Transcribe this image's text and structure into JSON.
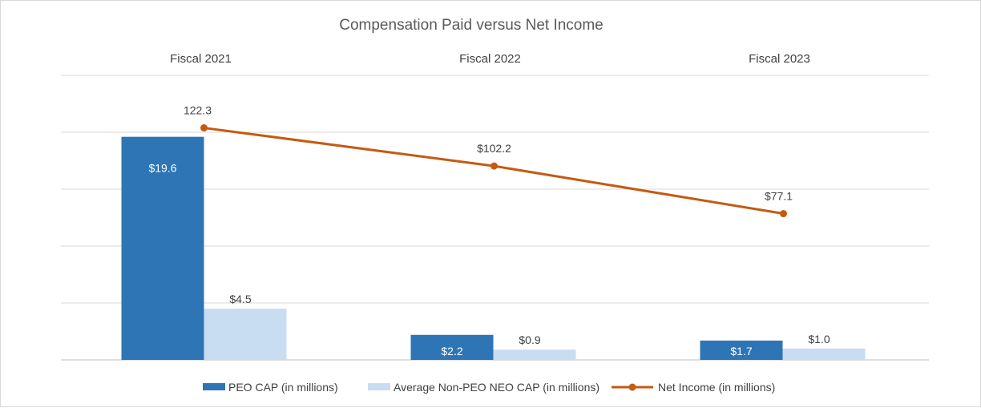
{
  "chart_data": {
    "type": "bar",
    "title": "Compensation Paid versus Net Income",
    "categories": [
      "Fiscal 2021",
      "Fiscal 2022",
      "Fiscal 2023"
    ],
    "bar_ylim": [
      0,
      25
    ],
    "line_ylim": [
      0,
      150
    ],
    "grid": true,
    "legend_position": "bottom",
    "series": [
      {
        "name": "PEO CAP (in millions)",
        "kind": "bar",
        "color": "#2e75b6",
        "values": [
          19.6,
          2.2,
          1.7
        ],
        "labels": [
          "$19.6",
          "$2.2",
          "$1.7"
        ]
      },
      {
        "name": "Average Non-PEO NEO CAP (in millions)",
        "kind": "bar",
        "color": "#c9ddf2",
        "values": [
          4.5,
          0.9,
          1.0
        ],
        "labels": [
          "$4.5",
          "$0.9",
          "$1.0"
        ]
      },
      {
        "name": "Net Income (in millions)",
        "kind": "line",
        "color": "#c55a11",
        "values": [
          122.3,
          102.2,
          77.1
        ],
        "labels": [
          "122.3",
          "$102.2",
          "$77.1"
        ]
      }
    ]
  }
}
